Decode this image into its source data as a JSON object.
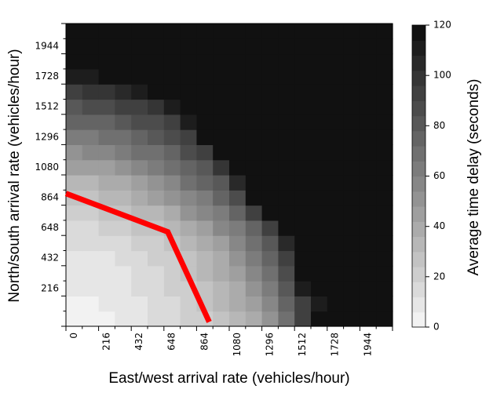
{
  "chart_data": {
    "type": "heatmap",
    "xlabel": "East/west arrival rate (vehicles/hour)",
    "ylabel": "North/south arrival rate (vehicles/hour)",
    "x_tick_labels": [
      "0",
      "216",
      "432",
      "648",
      "864",
      "1080",
      "1296",
      "1512",
      "1728",
      "1944"
    ],
    "y_tick_labels": [
      "216",
      "432",
      "648",
      "864",
      "1080",
      "1296",
      "1512",
      "1728",
      "1944"
    ],
    "x_range": [
      0,
      2052
    ],
    "y_range": [
      0,
      2052
    ],
    "cell_size": 108,
    "colorbar": {
      "label": "Average time delay (seconds)",
      "range": [
        0,
        120
      ],
      "ticks": [
        "0",
        "20",
        "40",
        "60",
        "80",
        "100",
        "120"
      ],
      "levels": 20,
      "low_color": "#f2f2f2",
      "high_color": "#111111"
    },
    "delay_grid_seconds": [
      [
        5,
        4,
        4,
        6,
        8,
        12,
        15,
        18,
        22,
        27,
        33,
        40,
        52,
        70,
        95,
        118,
        120,
        120,
        120,
        120
      ],
      [
        5,
        5,
        6,
        8,
        10,
        13,
        17,
        20,
        24,
        30,
        36,
        46,
        58,
        74,
        90,
        110,
        120,
        120,
        120,
        120
      ],
      [
        6,
        6,
        8,
        9,
        12,
        15,
        18,
        22,
        26,
        33,
        40,
        50,
        62,
        78,
        112,
        120,
        120,
        120,
        120,
        120
      ],
      [
        7,
        8,
        9,
        11,
        13,
        16,
        20,
        25,
        30,
        37,
        44,
        54,
        66,
        84,
        115,
        120,
        120,
        120,
        120,
        120
      ],
      [
        9,
        10,
        11,
        13,
        15,
        19,
        23,
        28,
        34,
        41,
        50,
        60,
        72,
        95,
        118,
        120,
        120,
        120,
        120,
        120
      ],
      [
        12,
        13,
        14,
        16,
        19,
        23,
        27,
        33,
        39,
        47,
        56,
        67,
        82,
        105,
        120,
        120,
        120,
        120,
        120,
        120
      ],
      [
        16,
        17,
        18,
        21,
        24,
        28,
        33,
        39,
        46,
        55,
        65,
        76,
        95,
        120,
        120,
        120,
        120,
        120,
        120,
        120
      ],
      [
        21,
        22,
        24,
        27,
        30,
        35,
        41,
        48,
        56,
        65,
        75,
        90,
        120,
        120,
        120,
        120,
        120,
        120,
        120,
        120
      ],
      [
        27,
        28,
        30,
        33,
        37,
        43,
        50,
        57,
        65,
        73,
        85,
        120,
        120,
        120,
        120,
        120,
        120,
        120,
        120,
        120
      ],
      [
        34,
        35,
        38,
        41,
        46,
        52,
        58,
        66,
        74,
        83,
        105,
        120,
        120,
        120,
        120,
        120,
        120,
        120,
        120,
        120
      ],
      [
        42,
        44,
        47,
        51,
        56,
        62,
        68,
        75,
        83,
        100,
        120,
        120,
        120,
        120,
        120,
        120,
        120,
        120,
        120,
        120
      ],
      [
        52,
        54,
        57,
        61,
        66,
        71,
        77,
        84,
        95,
        120,
        120,
        120,
        120,
        120,
        120,
        120,
        120,
        120,
        120,
        120
      ],
      [
        62,
        64,
        67,
        71,
        75,
        80,
        86,
        92,
        120,
        120,
        120,
        120,
        120,
        120,
        120,
        120,
        120,
        120,
        120,
        120
      ],
      [
        72,
        74,
        77,
        80,
        84,
        88,
        94,
        110,
        120,
        120,
        120,
        120,
        120,
        120,
        120,
        120,
        120,
        120,
        120,
        120
      ],
      [
        82,
        84,
        87,
        90,
        94,
        100,
        110,
        120,
        120,
        120,
        120,
        120,
        120,
        120,
        120,
        120,
        120,
        120,
        120,
        120
      ],
      [
        94,
        96,
        99,
        104,
        110,
        116,
        120,
        120,
        120,
        120,
        120,
        120,
        120,
        120,
        120,
        120,
        120,
        120,
        120,
        120
      ],
      [
        108,
        110,
        114,
        120,
        120,
        120,
        120,
        120,
        120,
        120,
        120,
        120,
        120,
        120,
        120,
        120,
        120,
        120,
        120,
        120
      ],
      [
        116,
        118,
        120,
        120,
        120,
        120,
        120,
        120,
        120,
        120,
        120,
        120,
        120,
        120,
        120,
        120,
        120,
        120,
        120,
        120
      ],
      [
        120,
        120,
        120,
        120,
        120,
        120,
        120,
        120,
        120,
        120,
        120,
        120,
        120,
        120,
        120,
        120,
        120,
        120,
        120,
        120
      ],
      [
        120,
        120,
        120,
        120,
        120,
        120,
        120,
        120,
        120,
        120,
        120,
        120,
        120,
        120,
        120,
        120,
        120,
        120,
        120,
        120
      ]
    ],
    "series": [
      {
        "color": "#ff0000",
        "points": [
          [
            0,
            900
          ],
          [
            640,
            640
          ],
          [
            900,
            30
          ]
        ]
      }
    ]
  }
}
